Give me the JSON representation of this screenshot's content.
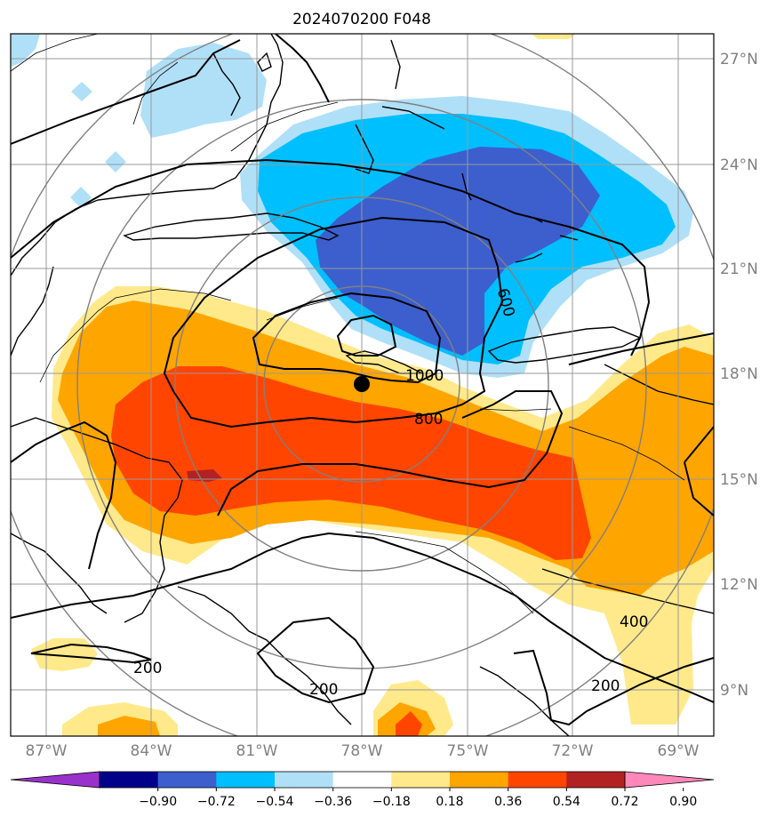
{
  "title": "2024070200 F048",
  "map": {
    "lat_labels": [
      "27°N",
      "24°N",
      "21°N",
      "18°N",
      "15°N",
      "12°N",
      "9°N"
    ],
    "lon_labels": [
      "87°W",
      "84°W",
      "81°W",
      "78°W",
      "75°W",
      "72°W",
      "69°W"
    ],
    "contour_labels": [
      "1000",
      "800",
      "400",
      "200",
      "200",
      "200",
      "600"
    ],
    "center_marker": "storm-center-dot"
  },
  "colorbar": {
    "ticks": [
      "−0.90",
      "−0.72",
      "−0.54",
      "−0.36",
      "−0.18",
      "0.18",
      "0.36",
      "0.54",
      "0.72",
      "0.90"
    ],
    "colors": [
      "#9932cc",
      "#00008b",
      "#3c5fcd",
      "#00bfff",
      "#b0e0f8",
      "#ffffff",
      "#ffe98a",
      "#ffa500",
      "#ff4500",
      "#b22222",
      "#ff88bb"
    ]
  },
  "colors": {
    "neg1": "#b0e0f8",
    "neg2": "#00bfff",
    "neg3": "#3c5fcd",
    "pos1": "#ffe98a",
    "pos2": "#ffa500",
    "pos3": "#ff4500",
    "pos4": "#b22222"
  }
}
